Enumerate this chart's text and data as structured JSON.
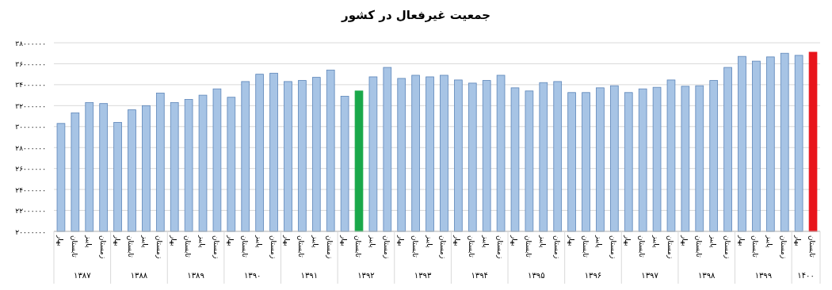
{
  "chart_data": {
    "type": "bar",
    "title": "جمعیت غیرفعال در کشور",
    "categories": [
      "بهار",
      "تابستان",
      "پاییز",
      "زمستان",
      "بهار",
      "تابستان",
      "پاییز",
      "زمستان",
      "بهار",
      "تابستان",
      "پاییز",
      "زمستان",
      "بهار",
      "تابستان",
      "پاییز",
      "زمستان",
      "بهار",
      "تابستان",
      "پاییز",
      "زمستان",
      "بهار",
      "تابستان",
      "پاییز",
      "زمستان",
      "بهار",
      "تابستان",
      "پاییز",
      "زمستان",
      "بهار",
      "تابستان",
      "پاییز",
      "زمستان",
      "بهار",
      "تابستان",
      "پاییز",
      "زمستان",
      "بهار",
      "تابستان",
      "پاییز",
      "زمستان",
      "بهار",
      "تابستان",
      "پاییز",
      "زمستان",
      "بهار",
      "تابستان",
      "پاییز",
      "زمستان",
      "بهار",
      "تابستان",
      "پاییز",
      "زمستان",
      "بهار",
      "تابستان"
    ],
    "values": [
      30300000,
      31300000,
      32300000,
      32200000,
      30400000,
      31600000,
      32000000,
      33200000,
      32300000,
      32600000,
      33000000,
      33600000,
      32800000,
      34300000,
      35000000,
      35100000,
      34300000,
      34400000,
      34700000,
      35400000,
      32900000,
      33400000,
      34750000,
      35650000,
      34600000,
      34900000,
      34750000,
      34900000,
      34450000,
      34150000,
      34400000,
      34900000,
      33700000,
      33400000,
      34200000,
      34300000,
      33250000,
      33250000,
      33700000,
      33900000,
      33250000,
      33600000,
      33750000,
      34450000,
      33850000,
      33900000,
      34400000,
      35650000,
      36700000,
      36250000,
      36650000,
      37000000,
      36800000,
      37100000
    ],
    "colors": [
      "#a7c4e5",
      "#a7c4e5",
      "#a7c4e5",
      "#a7c4e5",
      "#a7c4e5",
      "#a7c4e5",
      "#a7c4e5",
      "#a7c4e5",
      "#a7c4e5",
      "#a7c4e5",
      "#a7c4e5",
      "#a7c4e5",
      "#a7c4e5",
      "#a7c4e5",
      "#a7c4e5",
      "#a7c4e5",
      "#a7c4e5",
      "#a7c4e5",
      "#a7c4e5",
      "#a7c4e5",
      "#a7c4e5",
      "#1aa84a",
      "#a7c4e5",
      "#a7c4e5",
      "#a7c4e5",
      "#a7c4e5",
      "#a7c4e5",
      "#a7c4e5",
      "#a7c4e5",
      "#a7c4e5",
      "#a7c4e5",
      "#a7c4e5",
      "#a7c4e5",
      "#a7c4e5",
      "#a7c4e5",
      "#a7c4e5",
      "#a7c4e5",
      "#a7c4e5",
      "#a7c4e5",
      "#a7c4e5",
      "#a7c4e5",
      "#a7c4e5",
      "#a7c4e5",
      "#a7c4e5",
      "#a7c4e5",
      "#a7c4e5",
      "#a7c4e5",
      "#a7c4e5",
      "#a7c4e5",
      "#a7c4e5",
      "#a7c4e5",
      "#a7c4e5",
      "#a7c4e5",
      "#e8141b"
    ],
    "ylim": [
      20000000,
      38000000
    ],
    "yticks": [
      {
        "value": 20000000,
        "label": "۲۰۰۰۰۰۰۰"
      },
      {
        "value": 22000000,
        "label": "۲۲۰۰۰۰۰۰"
      },
      {
        "value": 24000000,
        "label": "۲۴۰۰۰۰۰۰"
      },
      {
        "value": 26000000,
        "label": "۲۶۰۰۰۰۰۰"
      },
      {
        "value": 28000000,
        "label": "۲۸۰۰۰۰۰۰"
      },
      {
        "value": 30000000,
        "label": "۳۰۰۰۰۰۰۰"
      },
      {
        "value": 32000000,
        "label": "۳۲۰۰۰۰۰۰"
      },
      {
        "value": 34000000,
        "label": "۳۴۰۰۰۰۰۰"
      },
      {
        "value": 36000000,
        "label": "۳۶۰۰۰۰۰۰"
      },
      {
        "value": 38000000,
        "label": "۳۸۰۰۰۰۰۰"
      }
    ],
    "annotations": [
      "۱۳۸۷",
      "۱۳۸۸",
      "۱۳۸۹",
      "۱۳۹۰",
      "۱۳۹۱",
      "۱۳۹۲",
      "۱۳۹۳",
      "۱۳۹۴",
      "۱۳۹۵",
      "۱۳۹۶",
      "۱۳۹۷",
      "۱۳۹۸",
      "۱۳۹۹",
      "۱۴۰۰"
    ],
    "grid": "y"
  }
}
